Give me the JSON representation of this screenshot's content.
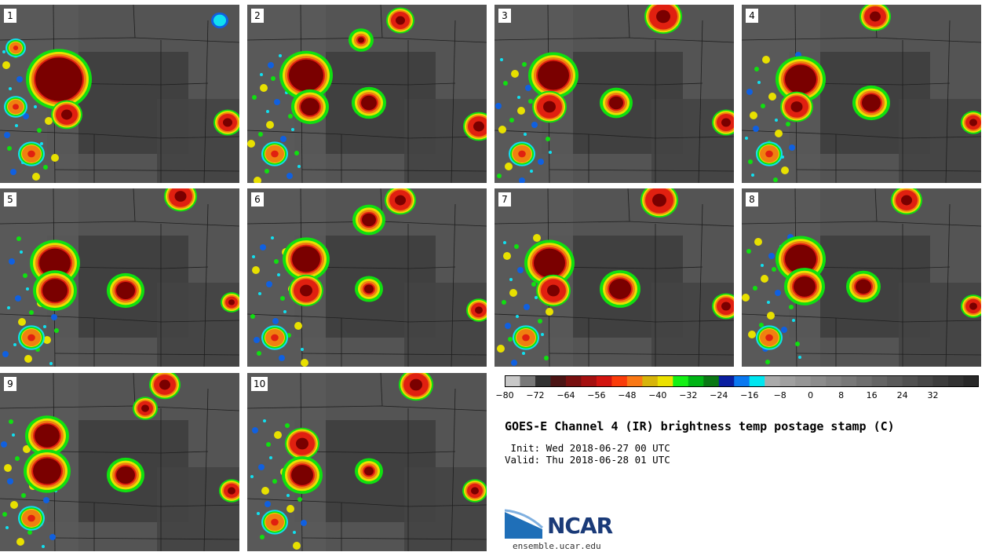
{
  "panels": [
    "1",
    "2",
    "3",
    "4",
    "5",
    "6",
    "7",
    "8",
    "9",
    "10"
  ],
  "colorbar": {
    "colors": [
      "#c8c8c8",
      "#787878",
      "#323232",
      "#4b1414",
      "#781010",
      "#a51010",
      "#d21410",
      "#fa3c0a",
      "#fa7814",
      "#d7b40a",
      "#ebe100",
      "#14f014",
      "#00b414",
      "#0a7814",
      "#0a1ea0",
      "#0a78f0",
      "#00e6f0",
      "#aaaaaa",
      "#a0a0a0",
      "#969696",
      "#8c8c8c",
      "#828282",
      "#787878",
      "#6e6e6e",
      "#646464",
      "#5a5a5a",
      "#505050",
      "#464646",
      "#3c3c3c",
      "#323232",
      "#282828"
    ],
    "ticks": [
      "−80",
      "−72",
      "−64",
      "−56",
      "−48",
      "−40",
      "−32",
      "−24",
      "−16",
      "−8",
      "0",
      "8",
      "16",
      "24",
      "32"
    ]
  },
  "title": "GOES-E Channel 4 (IR) brightness temp postage stamp (C)",
  "init_line": " Init: Wed 2018-06-27 00 UTC",
  "valid_line": "Valid: Thu 2018-06-28 01 UTC",
  "logo_text": "NCAR",
  "website": "ensemble.ucar.edu",
  "colors": {
    "deep": "#7a0000",
    "red": "#e02010",
    "orange": "#f08010",
    "yellow": "#e8e000",
    "green": "#10e010",
    "blue": "#1060e0",
    "cyan": "#10e0f0"
  }
}
